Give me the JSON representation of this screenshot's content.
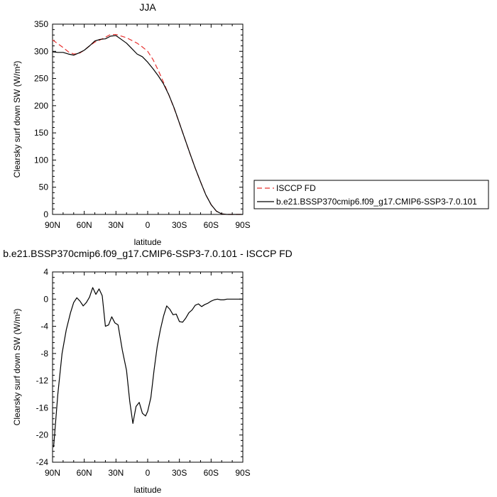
{
  "colors": {
    "axis": "#000000",
    "isccp": "#e8312f",
    "model": "#000000",
    "diff": "#000000"
  },
  "chart_data": [
    {
      "type": "line",
      "title": "JJA",
      "xlabel": "latitude",
      "ylabel": "Clearsky surf down SW (W/m²)",
      "xlim": [
        90,
        -90
      ],
      "ylim": [
        0,
        350
      ],
      "x_ticks": [
        90,
        60,
        30,
        0,
        -30,
        -60,
        -90
      ],
      "x_tick_labels": [
        "90N",
        "60N",
        "30N",
        "0",
        "30S",
        "60S",
        "90S"
      ],
      "y_ticks": [
        0,
        50,
        100,
        150,
        200,
        250,
        300,
        350
      ],
      "y_tick_labels": [
        "0",
        "50",
        "100",
        "150",
        "200",
        "250",
        "300",
        "350"
      ],
      "legend_position": "right",
      "series": [
        {
          "name": "ISCCP FD",
          "style": "dashed",
          "color": "#e8312f",
          "x": [
            90,
            85,
            80,
            75,
            70,
            65,
            60,
            55,
            50,
            45,
            40,
            35,
            30,
            25,
            20,
            15,
            10,
            5,
            0,
            -5,
            -10,
            -15,
            -20,
            -25,
            -30,
            -35,
            -40,
            -45,
            -50,
            -55,
            -60,
            -65,
            -70,
            -75,
            -80,
            -85,
            -90
          ],
          "values": [
            321,
            314,
            307,
            299,
            295,
            296,
            302,
            310,
            317,
            321,
            326,
            331,
            331,
            328,
            325,
            320,
            315,
            308,
            300,
            285,
            265,
            243,
            220,
            195,
            168,
            140,
            112,
            85,
            60,
            36,
            18,
            6,
            1,
            0,
            0,
            0,
            0
          ]
        },
        {
          "name": "b.e21.BSSP370cmip6.f09_g17.CMIP6-SSP3-7.0.101",
          "style": "solid",
          "color": "#000000",
          "x": [
            90,
            85,
            80,
            75,
            70,
            65,
            60,
            55,
            50,
            45,
            40,
            35,
            30,
            25,
            20,
            15,
            10,
            5,
            0,
            -5,
            -10,
            -15,
            -20,
            -25,
            -30,
            -35,
            -40,
            -45,
            -50,
            -55,
            -60,
            -65,
            -70,
            -75,
            -80,
            -85,
            -90
          ],
          "values": [
            299,
            298,
            298,
            295,
            293,
            297,
            302,
            310,
            319,
            322,
            323,
            328,
            329,
            322,
            315,
            305,
            295,
            290,
            280,
            268,
            255,
            240,
            220,
            196,
            168,
            140,
            112,
            85,
            60,
            36,
            18,
            6,
            1,
            0,
            0,
            0,
            0
          ]
        }
      ]
    },
    {
      "type": "line",
      "title": "b.e21.BSSP370cmip6.f09_g17.CMIP6-SSP3-7.0.101 - ISCCP FD",
      "xlabel": "latitude",
      "ylabel": "Clearsky surf down SW (W/m²)",
      "xlim": [
        90,
        -90
      ],
      "ylim": [
        -24,
        4
      ],
      "x_ticks": [
        90,
        60,
        30,
        0,
        -30,
        -60,
        -90
      ],
      "x_tick_labels": [
        "90N",
        "60N",
        "30N",
        "0",
        "30S",
        "60S",
        "90S"
      ],
      "y_ticks": [
        4,
        0,
        -4,
        -8,
        -12,
        -16,
        -20,
        -24
      ],
      "y_tick_labels": [
        "4",
        "0",
        "-4",
        "-8",
        "-12",
        "-16",
        "-20",
        "-24"
      ],
      "series": [
        {
          "style": "solid",
          "color": "#000000",
          "x": [
            89,
            85,
            81,
            77,
            73,
            70,
            67,
            64,
            61,
            58,
            55,
            52,
            49,
            46,
            43,
            40,
            37,
            34,
            31,
            28,
            24,
            20,
            17,
            14,
            11,
            8,
            5,
            2,
            0,
            -3,
            -6,
            -9,
            -12,
            -15,
            -18,
            -21,
            -24,
            -27,
            -30,
            -33,
            -36,
            -39,
            -42,
            -45,
            -48,
            -51,
            -54,
            -57,
            -60,
            -63,
            -66,
            -69,
            -72,
            -75,
            -78,
            -81,
            -84,
            -87,
            -90
          ],
          "values": [
            -21.8,
            -14,
            -8,
            -4.5,
            -2,
            -0.5,
            0.2,
            -0.3,
            -1.0,
            -0.5,
            0.3,
            1.7,
            0.7,
            1.5,
            0.5,
            -4.0,
            -3.8,
            -2.6,
            -3.5,
            -3.8,
            -7.5,
            -10.5,
            -15,
            -18.3,
            -15.8,
            -15.2,
            -16.8,
            -17.2,
            -16.5,
            -14.5,
            -10.5,
            -7,
            -4.5,
            -2.5,
            -1.0,
            -1.5,
            -2.3,
            -2.2,
            -3.3,
            -3.4,
            -2.8,
            -2.0,
            -1.6,
            -0.9,
            -0.7,
            -1.1,
            -0.8,
            -0.6,
            -0.3,
            -0.1,
            0,
            -0.1,
            -0.1,
            0,
            0,
            0,
            0,
            0,
            0
          ]
        }
      ]
    }
  ]
}
